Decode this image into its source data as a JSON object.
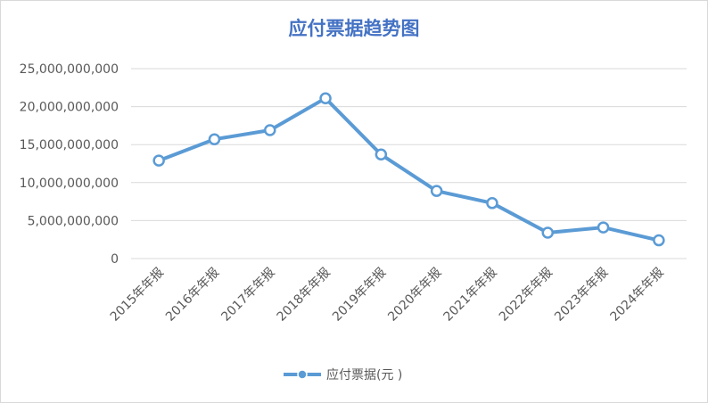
{
  "chart_data": {
    "type": "line",
    "title": "应付票据趋势图",
    "xlabel": "",
    "ylabel": "",
    "categories": [
      "2015年年报",
      "2016年年报",
      "2017年年报",
      "2018年年报",
      "2019年年报",
      "2020年年报",
      "2021年年报",
      "2022年年报",
      "2023年年报",
      "2024年年报"
    ],
    "series": [
      {
        "name": "应付票据(元 )",
        "values": [
          12900000000,
          15700000000,
          16900000000,
          21100000000,
          13700000000,
          8900000000,
          7300000000,
          3400000000,
          4100000000,
          2400000000
        ]
      }
    ],
    "yticks": [
      "0",
      "5,000,000,000",
      "10,000,000,000",
      "15,000,000,000",
      "20,000,000,000",
      "25,000,000,000"
    ],
    "ylim": [
      0,
      25000000000
    ],
    "grid": true,
    "legend": "bottom",
    "colors": {
      "line": "#5b9bd5",
      "title": "#4472c4",
      "grid": "#d9d9d9",
      "text": "#595959"
    }
  }
}
